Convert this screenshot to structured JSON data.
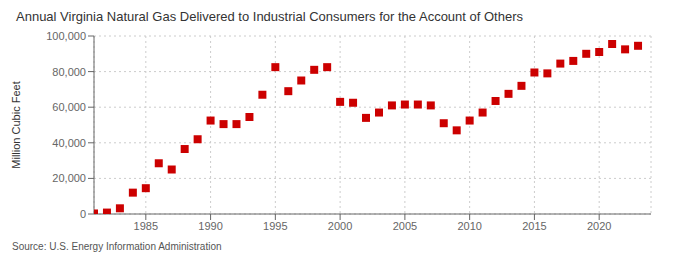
{
  "chart_data": {
    "type": "scatter",
    "title": "Annual Virginia Natural Gas Delivered to Industrial Consumers for the Account of Others",
    "ylabel": "Million Cubic Feet",
    "annotation": "Source: U.S. Energy Information Administration",
    "x": [
      1981,
      1982,
      1983,
      1984,
      1985,
      1986,
      1987,
      1988,
      1989,
      1990,
      1991,
      1992,
      1993,
      1994,
      1995,
      1996,
      1997,
      1998,
      1999,
      2000,
      2001,
      2002,
      2003,
      2004,
      2005,
      2006,
      2007,
      2008,
      2009,
      2010,
      2011,
      2012,
      2013,
      2014,
      2015,
      2016,
      2017,
      2018,
      2019,
      2020,
      2021,
      2022,
      2023
    ],
    "values": [
      300,
      800,
      3200,
      12000,
      14500,
      28500,
      25000,
      36500,
      42000,
      52500,
      50500,
      50500,
      54500,
      67000,
      82500,
      69000,
      75000,
      81000,
      82500,
      63000,
      62500,
      54000,
      57000,
      61000,
      61500,
      61500,
      61000,
      51000,
      47000,
      52500,
      57000,
      63500,
      67500,
      72000,
      79500,
      79000,
      84500,
      86000,
      90000,
      91000,
      95500,
      92500,
      94500
    ],
    "color": "#cc0000",
    "marker": "square",
    "xlim": [
      1981,
      2024
    ],
    "ylim": [
      0,
      100000
    ],
    "xticks": [
      1985,
      1990,
      1995,
      2000,
      2005,
      2010,
      2015,
      2020
    ],
    "yticks": [
      0,
      {
        "value": 20000,
        "label": "20,000"
      },
      {
        "value": 40000,
        "label": "40,000"
      },
      {
        "value": 60000,
        "label": "60,000"
      },
      {
        "value": 80000,
        "label": "80,000"
      },
      {
        "value": 100000,
        "label": "100,000"
      }
    ],
    "grid": true
  }
}
